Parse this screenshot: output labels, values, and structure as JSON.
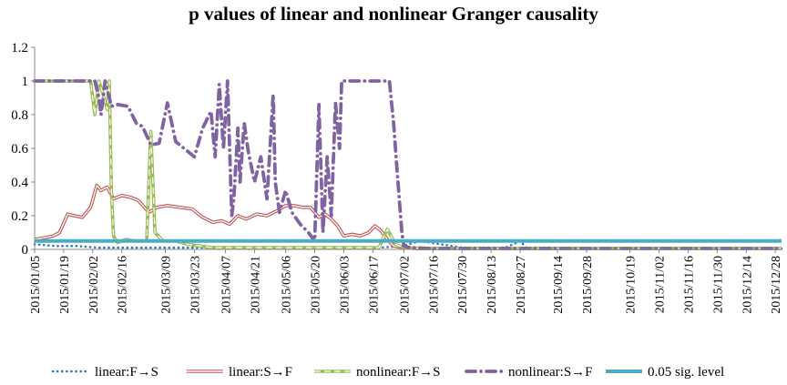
{
  "chart_data": {
    "type": "line",
    "title": "p values of linear and nonlinear Granger causality",
    "xlabel": "",
    "ylabel": "",
    "ylim": [
      0,
      1.2
    ],
    "yticks": [
      "0",
      "0.2",
      "0.4",
      "0.6",
      "0.8",
      "1",
      "1.2"
    ],
    "ytick_values": [
      0,
      0.2,
      0.4,
      0.6,
      0.8,
      1.0,
      1.2
    ],
    "xlim": [
      "2015-01-05",
      "2015-12-31"
    ],
    "x_tick_labels": [
      "2015/01/05",
      "2015/01/19",
      "2015/02/02",
      "2015/02/16",
      "2015/03/09",
      "2015/03/23",
      "2015/04/07",
      "2015/04/21",
      "2015/05/06",
      "2015/05/20",
      "2015/06/03",
      "2015/06/17",
      "2015/07/02",
      "2015/07/16",
      "2015/07/30",
      "2015/08/13",
      "2015/08/27",
      "2015/09/14",
      "2015/09/28",
      "2015/10/19",
      "2015/11/02",
      "2015/11/16",
      "2015/11/30",
      "2015/12/14",
      "2015/12/28"
    ],
    "x_tick_dates": [
      "2015-01-05",
      "2015-01-19",
      "2015-02-02",
      "2015-02-16",
      "2015-03-09",
      "2015-03-23",
      "2015-04-07",
      "2015-04-21",
      "2015-05-06",
      "2015-05-20",
      "2015-06-03",
      "2015-06-17",
      "2015-07-02",
      "2015-07-16",
      "2015-07-30",
      "2015-08-13",
      "2015-08-27",
      "2015-09-14",
      "2015-09-28",
      "2015-10-19",
      "2015-11-02",
      "2015-11-16",
      "2015-11-30",
      "2015-12-14",
      "2015-12-28"
    ],
    "grid": false,
    "legend_position": "bottom",
    "series": [
      {
        "name": "linear:F→S",
        "color": "#2e75b6",
        "style": "dotted",
        "x": [
          "2015-01-05",
          "2015-01-15",
          "2015-01-25",
          "2015-02-05",
          "2015-02-15",
          "2015-03-01",
          "2015-03-15",
          "2015-04-01",
          "2015-04-20",
          "2015-05-10",
          "2015-05-30",
          "2015-06-20",
          "2015-07-01",
          "2015-07-10",
          "2015-07-30",
          "2015-08-20",
          "2015-08-27",
          "2015-08-30",
          "2015-09-10",
          "2015-10-01",
          "2015-11-01",
          "2015-12-01",
          "2015-12-31"
        ],
        "y": [
          0.03,
          0.02,
          0.02,
          0.01,
          0.01,
          0.01,
          0.01,
          0.01,
          0.01,
          0.01,
          0.01,
          0.01,
          0.02,
          0.05,
          0.01,
          0.01,
          0.05,
          0.01,
          0.01,
          0.005,
          0.005,
          0.005,
          0.005
        ]
      },
      {
        "name": "linear:S→F",
        "color": "#c0504d",
        "style": "double",
        "x": [
          "2015-01-05",
          "2015-01-10",
          "2015-01-14",
          "2015-01-17",
          "2015-01-21",
          "2015-01-24",
          "2015-01-28",
          "2015-02-01",
          "2015-02-04",
          "2015-02-06",
          "2015-02-09",
          "2015-02-12",
          "2015-02-16",
          "2015-02-20",
          "2015-02-24",
          "2015-03-01",
          "2015-03-05",
          "2015-03-10",
          "2015-03-16",
          "2015-03-22",
          "2015-03-27",
          "2015-04-01",
          "2015-04-05",
          "2015-04-09",
          "2015-04-13",
          "2015-04-17",
          "2015-04-22",
          "2015-04-27",
          "2015-05-02",
          "2015-05-06",
          "2015-05-10",
          "2015-05-14",
          "2015-05-18",
          "2015-05-22",
          "2015-05-25",
          "2015-05-28",
          "2015-05-31",
          "2015-06-03",
          "2015-06-07",
          "2015-06-11",
          "2015-06-15",
          "2015-06-18",
          "2015-06-21",
          "2015-06-24",
          "2015-06-27",
          "2015-07-02",
          "2015-07-08",
          "2015-07-15",
          "2015-08-01",
          "2015-09-01",
          "2015-10-01",
          "2015-11-01",
          "2015-12-01",
          "2015-12-31"
        ],
        "y": [
          0.06,
          0.07,
          0.08,
          0.1,
          0.21,
          0.2,
          0.19,
          0.25,
          0.38,
          0.35,
          0.37,
          0.3,
          0.32,
          0.31,
          0.29,
          0.22,
          0.25,
          0.26,
          0.25,
          0.24,
          0.19,
          0.16,
          0.17,
          0.15,
          0.2,
          0.18,
          0.21,
          0.2,
          0.23,
          0.26,
          0.26,
          0.25,
          0.25,
          0.19,
          0.21,
          0.18,
          0.14,
          0.08,
          0.09,
          0.08,
          0.1,
          0.14,
          0.11,
          0.06,
          0.02,
          0.01,
          0.005,
          0.005,
          0.005,
          0.005,
          0.005,
          0.005,
          0.005,
          0.005
        ]
      },
      {
        "name": "nonlinear:F→S",
        "color": "#9bbb59",
        "style": "dashed",
        "x": [
          "2015-01-05",
          "2015-01-20",
          "2015-01-28",
          "2015-02-01",
          "2015-02-03",
          "2015-02-05",
          "2015-02-07",
          "2015-02-09",
          "2015-02-10",
          "2015-02-11",
          "2015-02-12",
          "2015-02-14",
          "2015-02-18",
          "2015-02-22",
          "2015-02-26",
          "2015-02-28",
          "2015-03-02",
          "2015-03-04",
          "2015-03-08",
          "2015-03-14",
          "2015-03-20",
          "2015-03-26",
          "2015-04-01",
          "2015-05-01",
          "2015-06-01",
          "2015-06-20",
          "2015-06-24",
          "2015-06-28",
          "2015-07-02",
          "2015-07-15",
          "2015-08-15",
          "2015-09-15",
          "2015-10-15",
          "2015-11-15",
          "2015-12-31"
        ],
        "y": [
          1.0,
          1.0,
          1.0,
          1.0,
          0.8,
          1.0,
          0.92,
          0.83,
          1.0,
          0.35,
          0.08,
          0.04,
          0.06,
          0.05,
          0.05,
          0.05,
          0.7,
          0.1,
          0.05,
          0.05,
          0.03,
          0.02,
          0.01,
          0.01,
          0.01,
          0.01,
          0.12,
          0.03,
          0.01,
          0.005,
          0.005,
          0.005,
          0.005,
          0.005,
          0.005
        ]
      },
      {
        "name": "nonlinear:S→F",
        "color": "#8064a2",
        "style": "dash-dot",
        "x": [
          "2015-01-05",
          "2015-01-25",
          "2015-02-03",
          "2015-02-05",
          "2015-02-06",
          "2015-02-08",
          "2015-02-11",
          "2015-02-14",
          "2015-02-19",
          "2015-02-23",
          "2015-02-26",
          "2015-03-02",
          "2015-03-06",
          "2015-03-10",
          "2015-03-14",
          "2015-03-18",
          "2015-03-23",
          "2015-03-27",
          "2015-03-31",
          "2015-04-02",
          "2015-04-04",
          "2015-04-06",
          "2015-04-08",
          "2015-04-10",
          "2015-04-11",
          "2015-04-13",
          "2015-04-14",
          "2015-04-16",
          "2015-04-18",
          "2015-04-21",
          "2015-04-24",
          "2015-04-27",
          "2015-04-30",
          "2015-05-01",
          "2015-05-03",
          "2015-05-06",
          "2015-05-09",
          "2015-05-13",
          "2015-05-17",
          "2015-05-20",
          "2015-05-22",
          "2015-05-24",
          "2015-05-26",
          "2015-05-28",
          "2015-05-30",
          "2015-06-01",
          "2015-06-02",
          "2015-06-04",
          "2015-06-10",
          "2015-06-15",
          "2015-06-20",
          "2015-06-25",
          "2015-06-27",
          "2015-06-29",
          "2015-07-01",
          "2015-07-02",
          "2015-07-05",
          "2015-07-15",
          "2015-08-15",
          "2015-09-15",
          "2015-10-15",
          "2015-11-15",
          "2015-12-31"
        ],
        "y": [
          1.0,
          1.0,
          1.0,
          0.9,
          0.8,
          1.0,
          0.85,
          0.86,
          0.85,
          0.75,
          0.73,
          0.62,
          0.63,
          0.87,
          0.64,
          0.6,
          0.55,
          0.72,
          0.82,
          0.55,
          0.98,
          0.6,
          1.0,
          0.2,
          0.3,
          0.72,
          0.4,
          0.75,
          0.58,
          0.4,
          0.55,
          0.3,
          0.92,
          0.4,
          0.22,
          0.35,
          0.22,
          0.15,
          0.1,
          0.05,
          0.86,
          0.1,
          0.55,
          0.2,
          0.87,
          0.6,
          1.0,
          1.0,
          1.0,
          1.0,
          1.0,
          1.0,
          0.75,
          0.42,
          0.1,
          0.02,
          0.01,
          0.005,
          0.005,
          0.005,
          0.005,
          0.005,
          0.005
        ]
      },
      {
        "name": "0.05 sig. level",
        "color": "#4bacc6",
        "style": "solid-thick",
        "x": [
          "2015-01-05",
          "2015-12-31"
        ],
        "y": [
          0.05,
          0.05
        ]
      }
    ]
  }
}
